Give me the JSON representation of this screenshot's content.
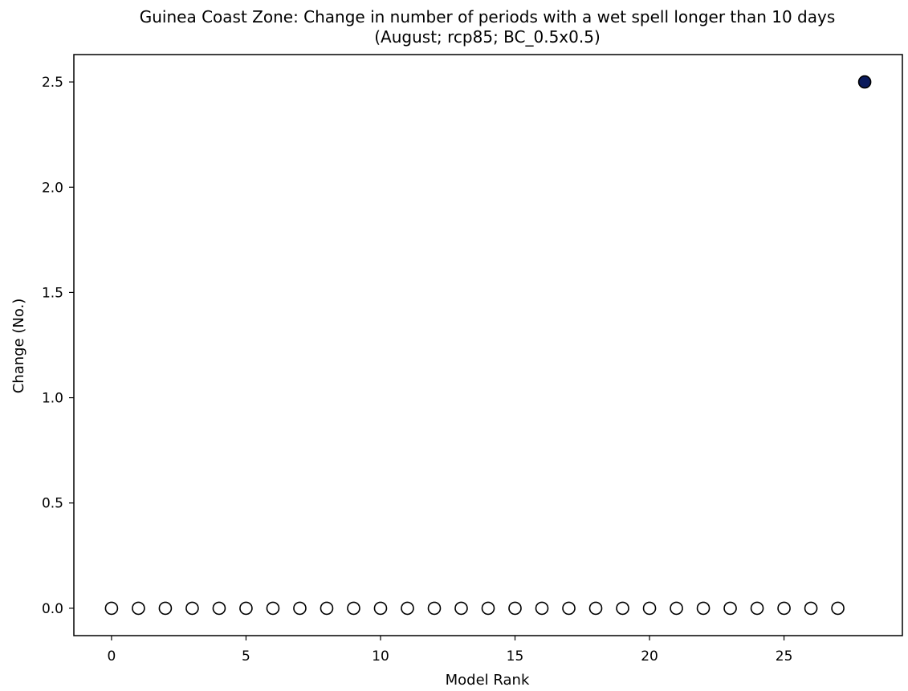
{
  "chart_data": {
    "type": "scatter",
    "title": "Guinea Coast Zone: Change in number of periods with a wet spell longer than 10 days",
    "subtitle": "(August; rcp85; BC_0.5x0.5)",
    "xlabel": "Model Rank",
    "ylabel": "Change (No.)",
    "xlim": [
      -1.4,
      29.4
    ],
    "ylim": [
      -0.13,
      2.63
    ],
    "xticks": [
      0,
      5,
      10,
      15,
      20,
      25
    ],
    "xtick_labels": [
      "0",
      "5",
      "10",
      "15",
      "20",
      "25"
    ],
    "yticks": [
      0.0,
      0.5,
      1.0,
      1.5,
      2.0,
      2.5
    ],
    "ytick_labels": [
      "0.0",
      "0.5",
      "1.0",
      "1.5",
      "2.0",
      "2.5"
    ],
    "grid": false,
    "series": [
      {
        "marker": "hollow-circle",
        "edge_color": "#000000",
        "x": [
          0,
          1,
          2,
          3,
          4,
          5,
          6,
          7,
          8,
          9,
          10,
          11,
          12,
          13,
          14,
          15,
          16,
          17,
          18,
          19,
          20,
          21,
          22,
          23,
          24,
          25,
          26,
          27
        ],
        "y": [
          0,
          0,
          0,
          0,
          0,
          0,
          0,
          0,
          0,
          0,
          0,
          0,
          0,
          0,
          0,
          0,
          0,
          0,
          0,
          0,
          0,
          0,
          0,
          0,
          0,
          0,
          0,
          0
        ]
      },
      {
        "marker": "filled-circle",
        "fill_color": "#0a1a5c",
        "edge_color": "#000000",
        "x": [
          28
        ],
        "y": [
          2.5
        ]
      }
    ]
  }
}
